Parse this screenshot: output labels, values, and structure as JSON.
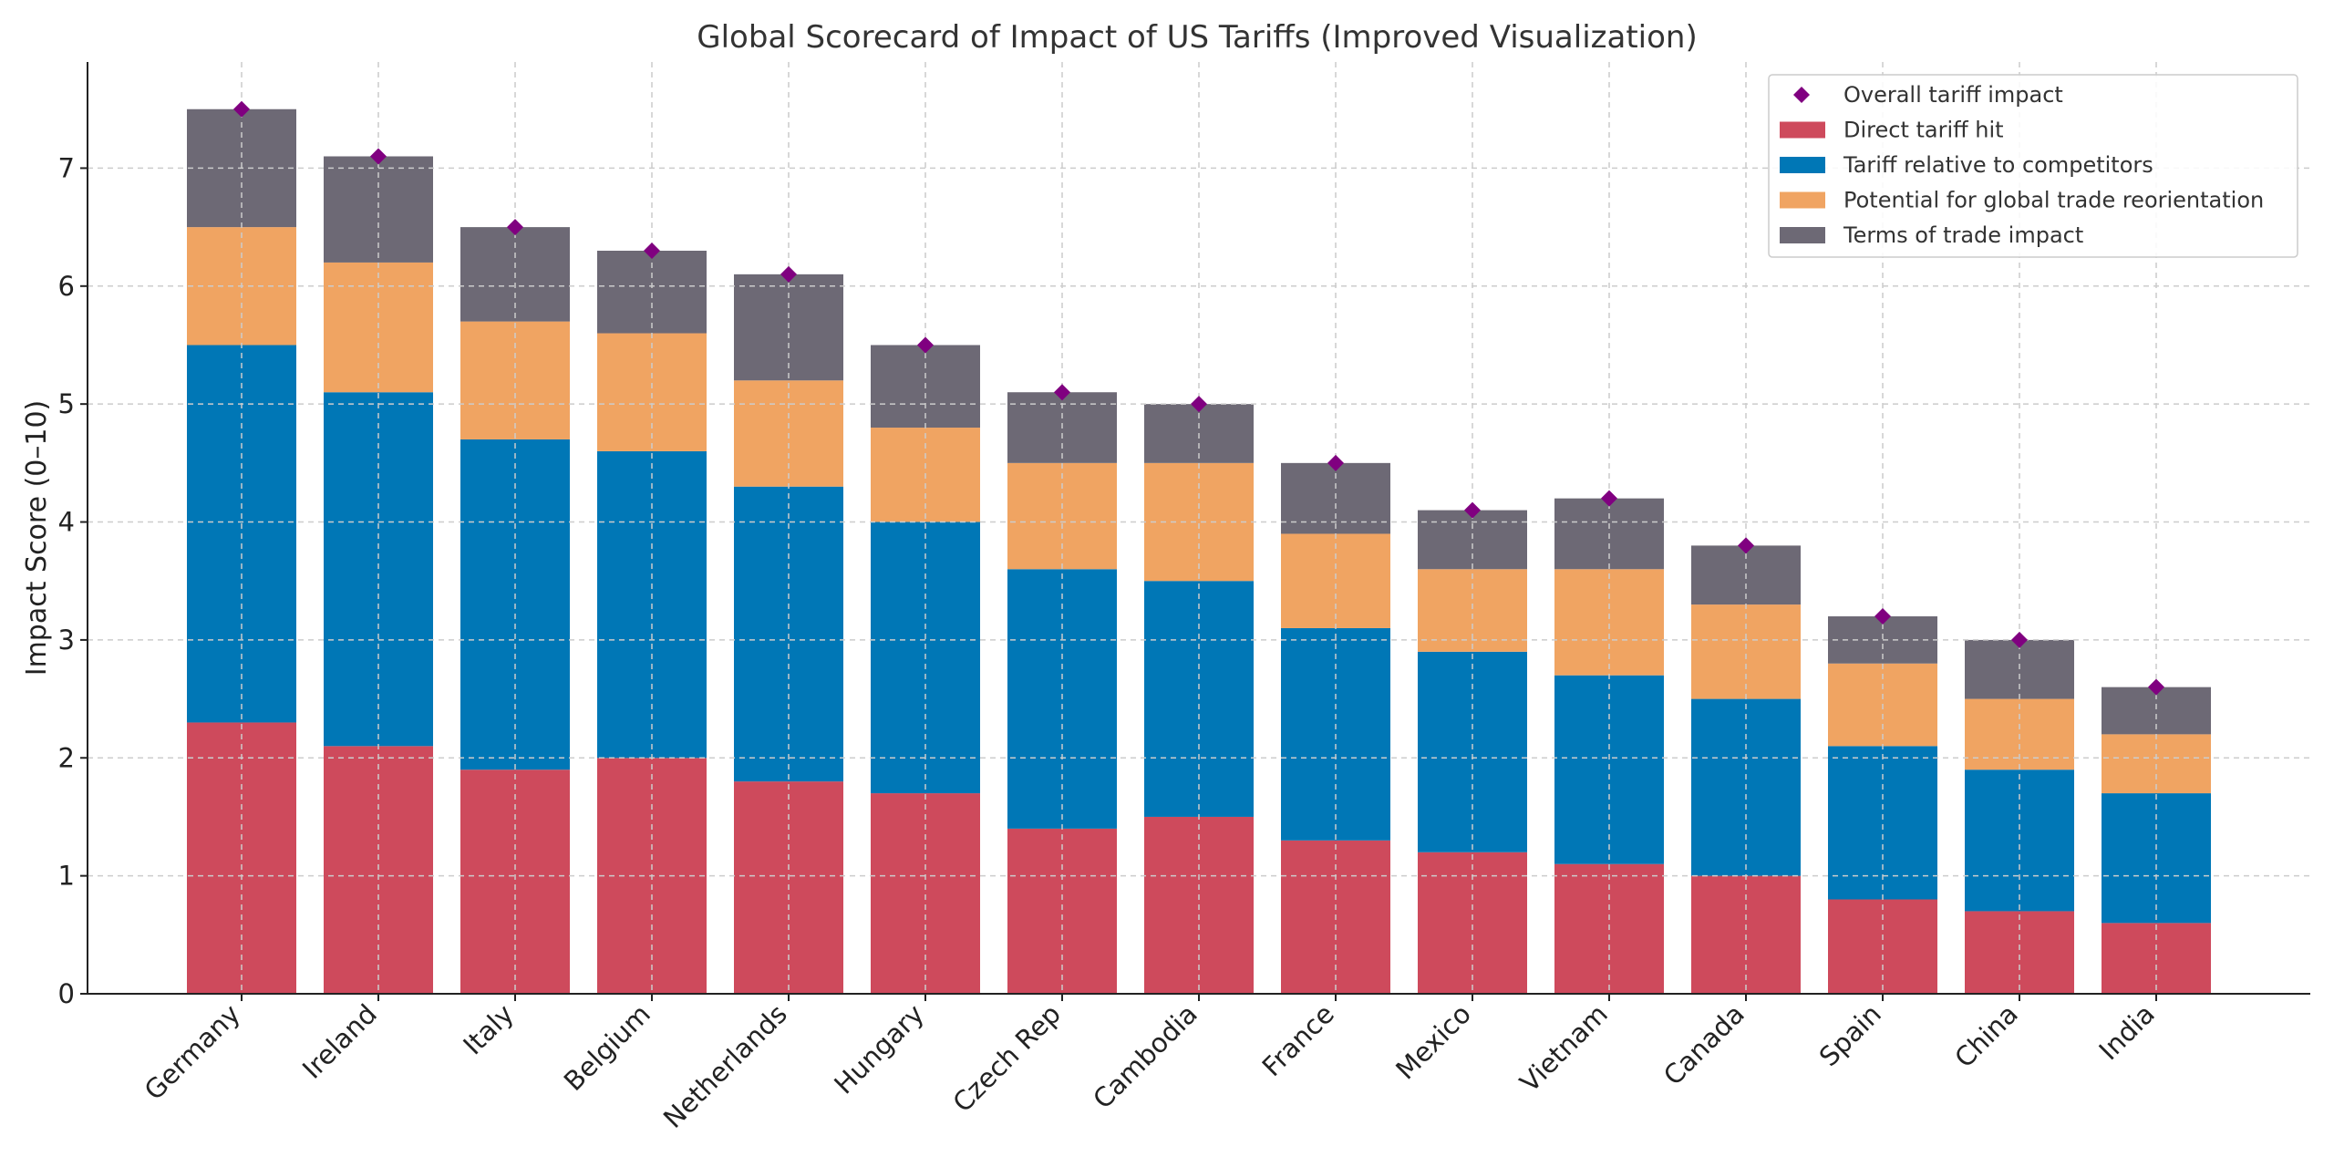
{
  "chart_data": {
    "type": "bar",
    "stacked": true,
    "title": "Global Scorecard of Impact of US Tariffs (Improved Visualization)",
    "xlabel": "",
    "ylabel": "Impact Score (0–10)",
    "ylim": [
      0,
      7.9
    ],
    "yticks": [
      "0",
      "1",
      "2",
      "3",
      "4",
      "5",
      "6",
      "7"
    ],
    "grid": true,
    "legend_position": "top-right",
    "categories": [
      "Germany",
      "Ireland",
      "Italy",
      "Belgium",
      "Netherlands",
      "Hungary",
      "Czech Rep",
      "Cambodia",
      "France",
      "Mexico",
      "Vietnam",
      "Canada",
      "Spain",
      "China",
      "India"
    ],
    "series": [
      {
        "name": "Direct tariff hit",
        "color": "#CE4A5C",
        "values": [
          2.3,
          2.1,
          1.9,
          2.0,
          1.8,
          1.7,
          1.4,
          1.5,
          1.3,
          1.2,
          1.1,
          1.0,
          0.8,
          0.7,
          0.6
        ]
      },
      {
        "name": "Tariff relative to competitors",
        "color": "#0077B6",
        "values": [
          3.2,
          3.0,
          2.8,
          2.6,
          2.5,
          2.3,
          2.2,
          2.0,
          1.8,
          1.7,
          1.6,
          1.5,
          1.3,
          1.2,
          1.1
        ]
      },
      {
        "name": "Potential for global trade reorientation",
        "color": "#F0A462",
        "values": [
          1.0,
          1.1,
          1.0,
          1.0,
          0.9,
          0.8,
          0.9,
          1.0,
          0.8,
          0.7,
          0.9,
          0.8,
          0.7,
          0.6,
          0.5
        ]
      },
      {
        "name": "Terms of trade impact",
        "color": "#6D6975",
        "values": [
          1.0,
          0.9,
          0.8,
          0.7,
          0.9,
          0.7,
          0.6,
          0.5,
          0.6,
          0.5,
          0.6,
          0.5,
          0.4,
          0.5,
          0.4
        ]
      }
    ],
    "overall": {
      "name": "Overall tariff impact",
      "color": "#800080",
      "values": [
        7.5,
        7.1,
        6.5,
        6.3,
        6.1,
        5.5,
        5.1,
        5.0,
        4.5,
        4.1,
        4.2,
        3.8,
        3.2,
        3.0,
        2.6
      ]
    },
    "legend_order": [
      "Overall tariff impact",
      "Direct tariff hit",
      "Tariff relative to competitors",
      "Potential for global trade reorientation",
      "Terms of trade impact"
    ]
  }
}
